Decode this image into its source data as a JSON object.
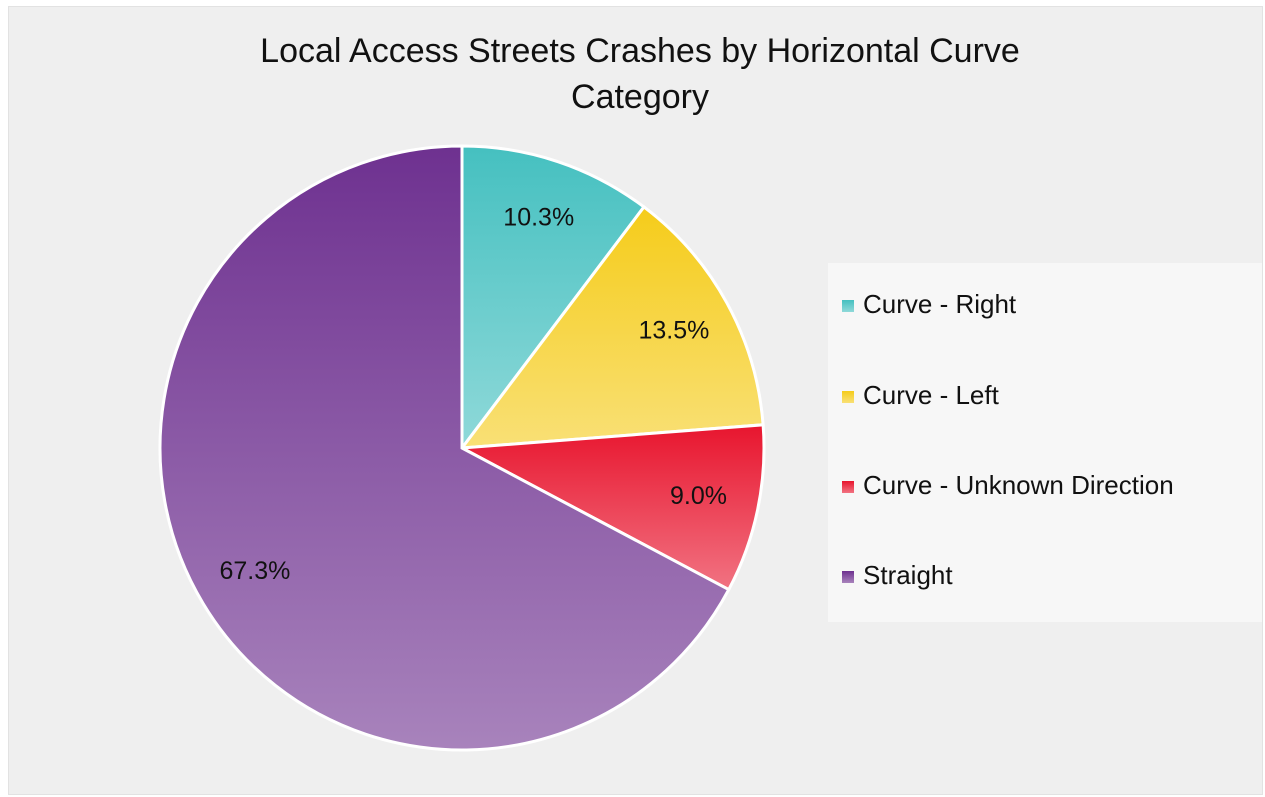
{
  "chart_data": {
    "type": "pie",
    "title": "Local Access Streets Crashes by Horizontal Curve Category",
    "categories": [
      "Curve - Right",
      "Curve - Left",
      "Curve - Unknown Direction",
      "Straight"
    ],
    "values": [
      10.3,
      13.5,
      9.0,
      67.3
    ],
    "value_labels": [
      "10.3%",
      "13.5%",
      "9.0%",
      "67.3%"
    ],
    "colors": [
      "#45c0c0",
      "#f5cc1a",
      "#e8152e",
      "#6e3190"
    ],
    "legend": "right"
  }
}
